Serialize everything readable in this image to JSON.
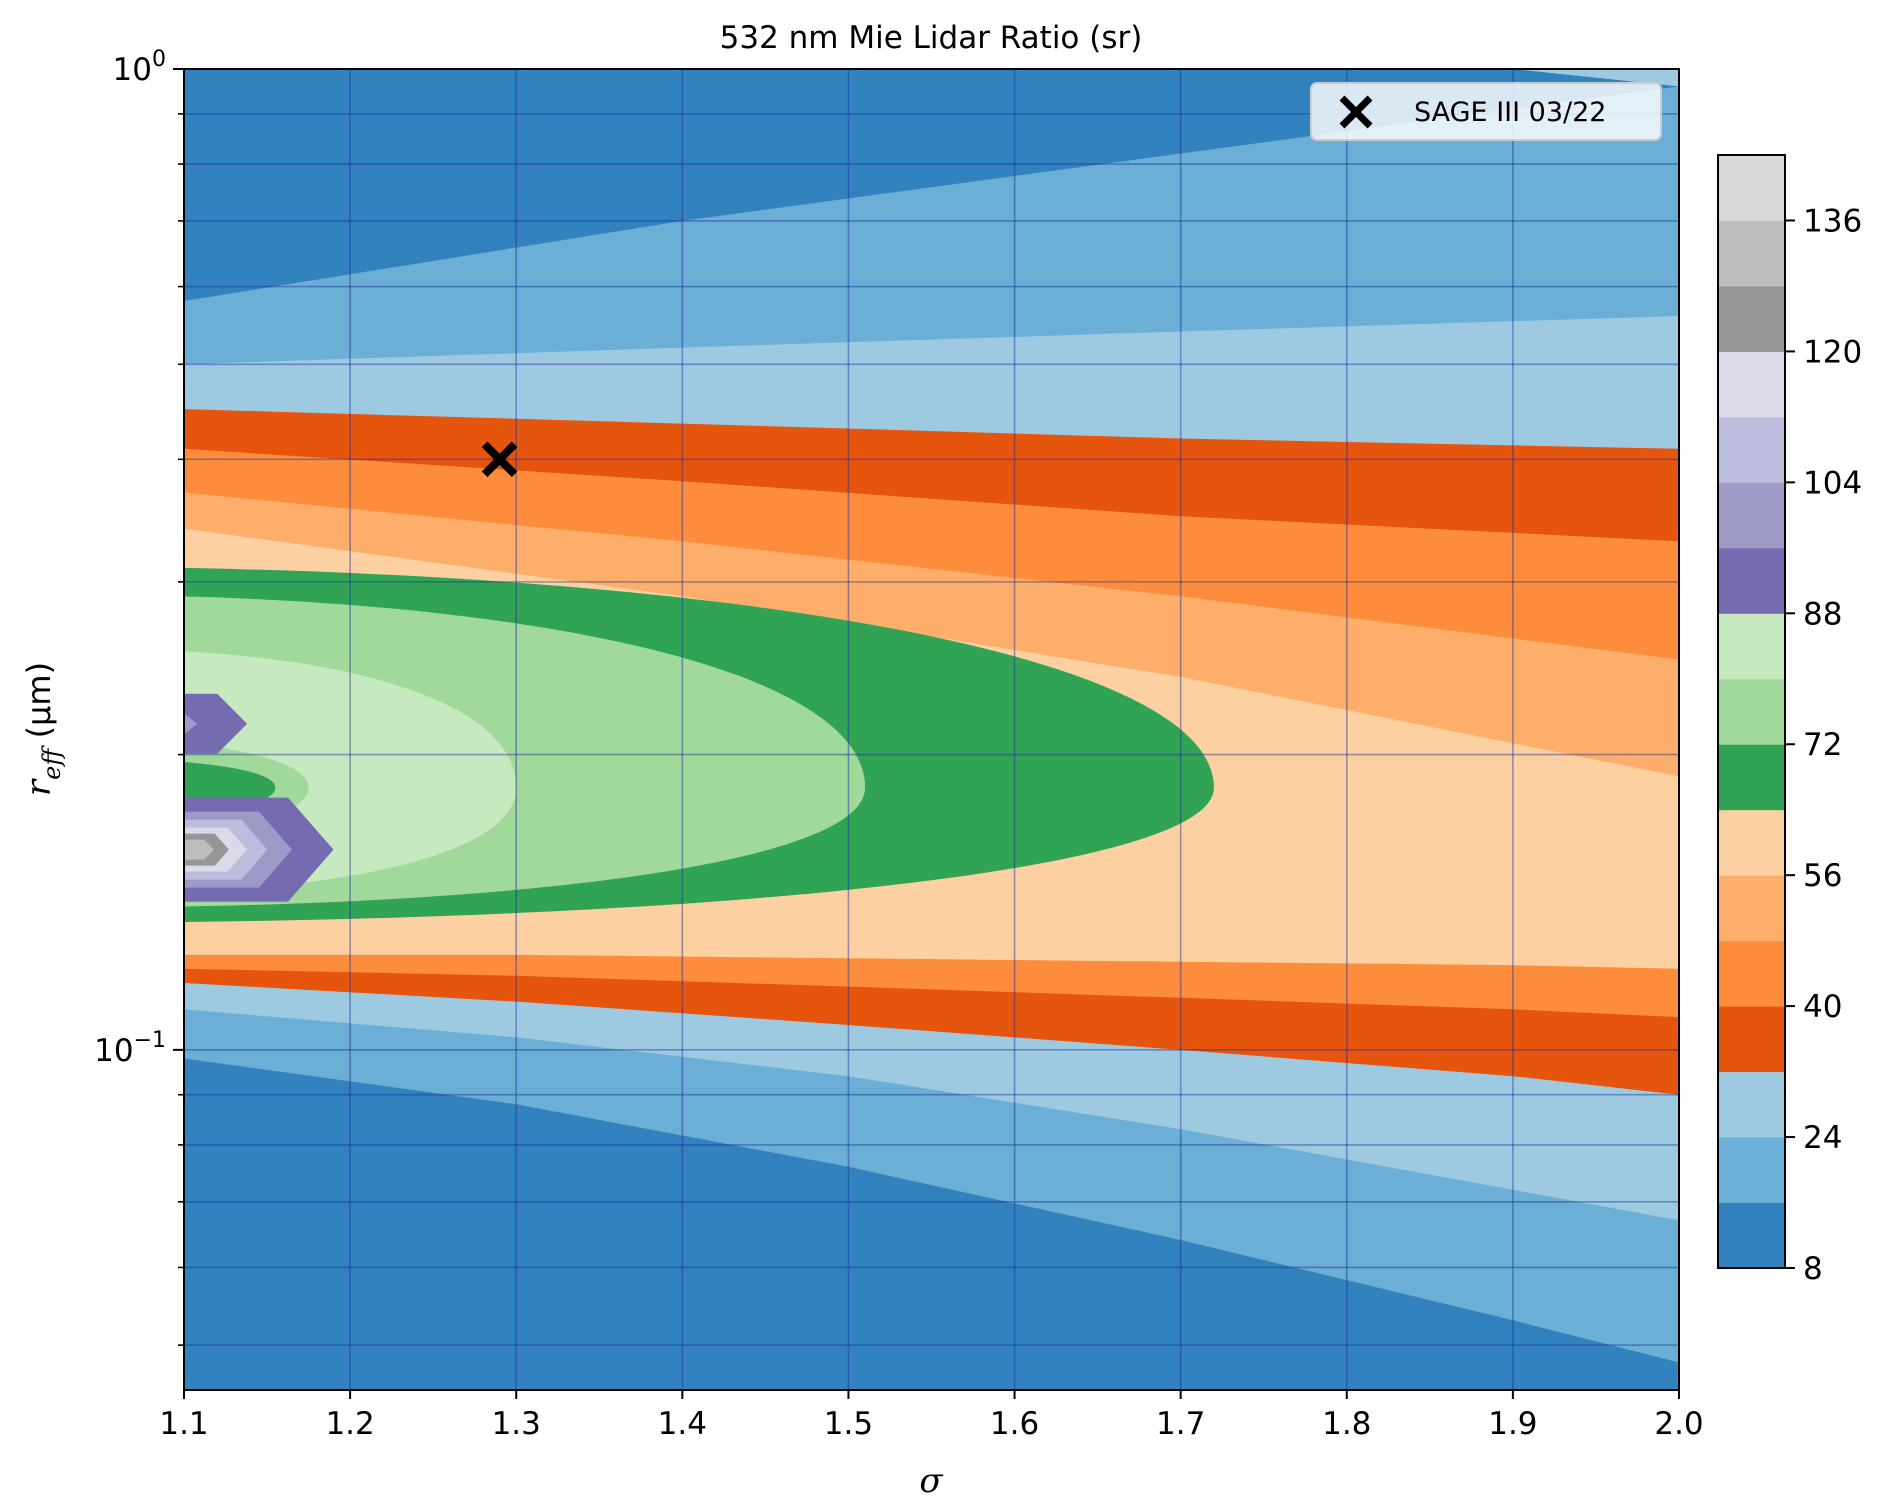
{
  "chart_data": {
    "type": "heatmap",
    "subtype": "filled-contour",
    "title": "532 nm Mie Lidar Ratio (sr)",
    "xlabel": "σ",
    "ylabel": {
      "base": "r",
      "subscript": "eff",
      "unit": " (μm)"
    },
    "xlim": [
      1.1,
      2.0
    ],
    "ylim": [
      0.045,
      1.0
    ],
    "yscale": "log",
    "x_ticks": [
      1.1,
      1.2,
      1.3,
      1.4,
      1.5,
      1.6,
      1.7,
      1.8,
      1.9,
      2.0
    ],
    "x_tick_labels": [
      "1.1",
      "1.2",
      "1.3",
      "1.4",
      "1.5",
      "1.6",
      "1.7",
      "1.8",
      "1.9",
      "2.0"
    ],
    "y_major_ticks": [
      {
        "value": 1.0,
        "base": "10",
        "exp": "0"
      },
      {
        "value": 0.1,
        "base": "10",
        "exp": "−1"
      }
    ],
    "y_minor_ticks": [
      0.05,
      0.06,
      0.07,
      0.08,
      0.09,
      0.2,
      0.3,
      0.4,
      0.5,
      0.6,
      0.7,
      0.8,
      0.9
    ],
    "grid": true,
    "colorbar": {
      "levels": [
        8,
        16,
        24,
        32,
        40,
        48,
        56,
        64,
        72,
        80,
        88,
        96,
        104,
        112,
        120,
        128,
        136,
        144
      ],
      "tick_values": [
        8,
        24,
        40,
        56,
        72,
        88,
        104,
        120,
        136
      ],
      "tick_labels": [
        "8",
        "24",
        "40",
        "56",
        "72",
        "88",
        "104",
        "120",
        "136"
      ],
      "colors": [
        "#3182bd",
        "#6baed6",
        "#9ecae1",
        "#e6550d",
        "#fd8d3c",
        "#fdae6b",
        "#fdd0a2",
        "#31a354",
        "#a1d99b",
        "#c7e9c0",
        "#756bb1",
        "#9e9ac8",
        "#bcbddc",
        "#dadaeb",
        "#969696",
        "#bdbdbd",
        "#d9d9d9"
      ]
    },
    "contour_bands": [
      {
        "level_min": 8,
        "color": "#3182bd",
        "upper": [
          [
            1.1,
            0.085
          ],
          [
            1.3,
            0.075
          ],
          [
            1.5,
            0.06
          ],
          [
            1.7,
            0.049
          ],
          [
            1.8,
            0.045
          ]
        ],
        "lower": [
          [
            1.1,
            0.045
          ]
        ],
        "islands": [
          {
            "sigma_max": 1.13,
            "r_center": 0.8,
            "r_halfwidth_decades": 0.025
          }
        ]
      },
      {
        "level_min": 16,
        "color": "#6baed6",
        "upper": [
          [
            1.1,
            0.098
          ],
          [
            1.3,
            0.088
          ],
          [
            1.5,
            0.076
          ],
          [
            1.7,
            0.064
          ],
          [
            1.9,
            0.053
          ],
          [
            2.0,
            0.048
          ]
        ],
        "upper_band": [
          [
            1.1,
            0.58
          ],
          [
            1.4,
            0.7
          ],
          [
            1.7,
            0.82
          ],
          [
            2.0,
            0.96
          ]
        ]
      },
      {
        "level_min": 24,
        "color": "#9ecae1",
        "upper": [
          [
            1.1,
            0.11
          ],
          [
            1.3,
            0.103
          ],
          [
            1.5,
            0.094
          ],
          [
            1.7,
            0.083
          ],
          [
            1.9,
            0.072
          ],
          [
            2.0,
            0.067
          ]
        ],
        "upper_band": [
          [
            1.1,
            0.5
          ],
          [
            1.4,
            0.52
          ],
          [
            1.7,
            0.54
          ],
          [
            2.0,
            0.56
          ]
        ]
      },
      {
        "level_min": 32,
        "color": "#e6550d",
        "upper": [
          [
            1.1,
            0.117
          ],
          [
            1.3,
            0.112
          ],
          [
            1.5,
            0.106
          ],
          [
            1.7,
            0.1
          ],
          [
            1.9,
            0.094
          ],
          [
            2.0,
            0.09
          ]
        ],
        "upper_band": [
          [
            1.1,
            0.45
          ],
          [
            1.4,
            0.435
          ],
          [
            1.7,
            0.42
          ],
          [
            2.0,
            0.41
          ]
        ]
      },
      {
        "level_min": 40,
        "color": "#fd8d3c",
        "upper": [
          [
            1.1,
            0.121
          ],
          [
            1.3,
            0.119
          ],
          [
            1.5,
            0.116
          ],
          [
            1.7,
            0.113
          ],
          [
            1.9,
            0.11
          ],
          [
            2.0,
            0.108
          ]
        ],
        "upper_band": [
          [
            1.1,
            0.41
          ],
          [
            1.4,
            0.38
          ],
          [
            1.7,
            0.35
          ],
          [
            2.0,
            0.33
          ]
        ]
      },
      {
        "level_min": 48,
        "color": "#fdae6b",
        "upper": [
          [
            1.1,
            0.125
          ],
          [
            1.3,
            0.125
          ],
          [
            1.5,
            0.124
          ],
          [
            1.7,
            0.123
          ],
          [
            1.9,
            0.122
          ],
          [
            2.0,
            0.121
          ]
        ],
        "upper_band": [
          [
            1.1,
            0.37
          ],
          [
            1.4,
            0.33
          ],
          [
            1.7,
            0.29
          ],
          [
            2.0,
            0.25
          ]
        ]
      },
      {
        "level_min": 56,
        "color": "#fdd0a2",
        "upper_band": [
          [
            1.1,
            0.34
          ],
          [
            1.4,
            0.29
          ],
          [
            1.7,
            0.24
          ],
          [
            2.0,
            0.19
          ]
        ]
      },
      {
        "level_min": 64,
        "color": "#31a354",
        "tip": [
          1.72,
          0.185
        ],
        "top": 0.31,
        "bottom": 0.135
      },
      {
        "level_min": 72,
        "color": "#a1d99b",
        "tip": [
          1.51,
          0.185
        ],
        "top": 0.29,
        "bottom": 0.14
      },
      {
        "level_min": 80,
        "color": "#c7e9c0",
        "tip": [
          1.3,
          0.185
        ],
        "top": 0.255,
        "bottom": 0.145
      },
      {
        "level_min": 88,
        "color": "#756bb1",
        "islands": [
          {
            "sigma_max": 1.135,
            "r_center": 0.215
          },
          {
            "sigma_max": 1.19,
            "r_center": 0.16
          }
        ]
      },
      {
        "level_min": 96,
        "color": "#9e9ac8",
        "islands": [
          {
            "sigma_max": 1.165,
            "r_center": 0.16
          }
        ]
      },
      {
        "level_min": 104,
        "color": "#bcbddc",
        "islands": [
          {
            "sigma_max": 1.15,
            "r_center": 0.16
          }
        ]
      },
      {
        "level_min": 120,
        "color": "#969696",
        "islands": [
          {
            "sigma_max": 1.13,
            "r_center": 0.16
          }
        ]
      },
      {
        "level_min": 128,
        "color": "#bdbdbd",
        "islands": [
          {
            "sigma_max": 1.12,
            "r_center": 0.16
          }
        ]
      }
    ],
    "markers": [
      {
        "name": "SAGE III 03/22",
        "symbol": "x",
        "x": 1.29,
        "y": 0.4,
        "color": "#000000"
      }
    ],
    "legend": {
      "location": "top-right",
      "entries": [
        "SAGE III 03/22"
      ]
    }
  }
}
